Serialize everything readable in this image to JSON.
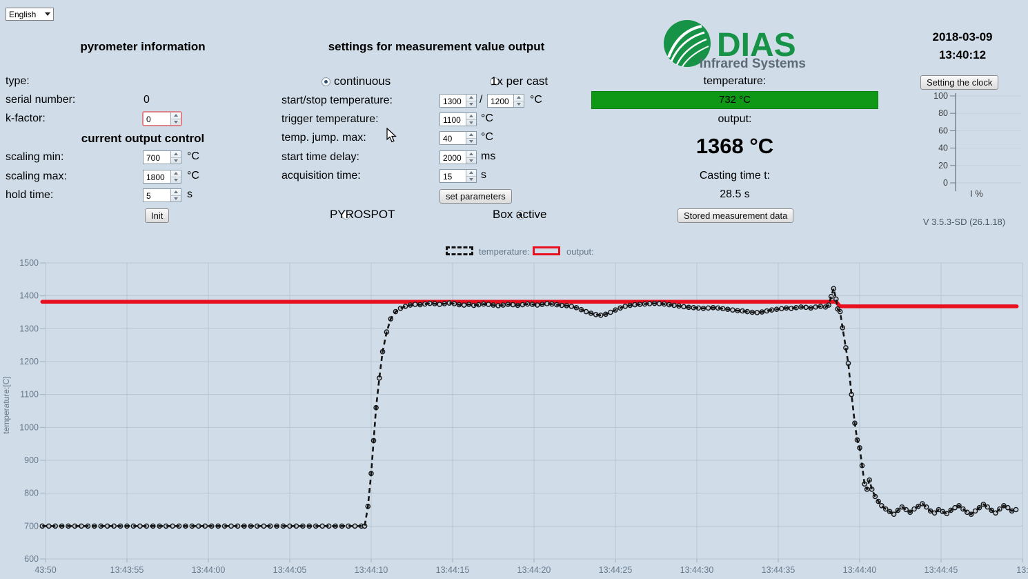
{
  "language_select": {
    "value": "English"
  },
  "left": {
    "title": "pyrometer information",
    "type_label": "type:",
    "serial_label": "serial number:",
    "serial_value": "0",
    "kfactor_label": "k-factor:",
    "kfactor_value": "0",
    "subtitle": "current output control",
    "scaling_min_label": "scaling min:",
    "scaling_min_value": "700",
    "scaling_min_unit": "°C",
    "scaling_max_label": "scaling max:",
    "scaling_max_value": "1800",
    "scaling_max_unit": "°C",
    "hold_time_label": "hold time:",
    "hold_time_value": "5",
    "hold_time_unit": "s",
    "init_button": "Init"
  },
  "settings": {
    "title": "settings for measurement value output",
    "mode_continuous": "continuous",
    "mode_once": "1x per cast",
    "slash": "/",
    "rows": [
      {
        "label": "start/stop temperature:",
        "value": "1300",
        "value2": "1200",
        "unit": "°C"
      },
      {
        "label": "trigger temperature:",
        "value": "1100",
        "unit": "°C"
      },
      {
        "label": "temp. jump. max:",
        "value": "40",
        "unit": "°C"
      },
      {
        "label": "start time delay:",
        "value": "2000",
        "unit": "ms"
      },
      {
        "label": "acquisition time:",
        "value": "15",
        "unit": "s"
      }
    ],
    "set_parameters_button": "set parameters",
    "pyrospot_label": "PYROSPOT",
    "box_active_label": "Box active"
  },
  "status": {
    "brand": "DIAS",
    "brand_sub": "Infrared Systems",
    "temperature_label": "temperature:",
    "temperature_value": "732 °C",
    "output_label": "output:",
    "output_value": "1368 °C",
    "casting_label": "Casting time t:",
    "casting_value": "28.5 s",
    "stored_button": "Stored measurement data"
  },
  "clock": {
    "date": "2018-03-09",
    "time": "13:40:12",
    "button": "Setting the clock",
    "gauge_label": "I %",
    "gauge_ticks": [
      100,
      80,
      60,
      40,
      20,
      0
    ],
    "version": "V 3.5.3-SD (26.1.18)"
  },
  "legend": {
    "temperature": "temperature:",
    "output": "output:"
  },
  "colors": {
    "background": "#d0dde9",
    "grid": "#b9c7d3",
    "output_red": "#e8101e",
    "temperature_black": "#131313",
    "status_green": "#0f9815"
  },
  "chart_data": {
    "type": "line",
    "title": "",
    "xlabel": "",
    "ylabel": "temperature:[C]",
    "ylim": [
      600,
      1500
    ],
    "ytick_step": 100,
    "x_seconds_range": [
      -0.25,
      60.05
    ],
    "x_tick_interval_s": 5,
    "x_tick_labels": [
      "43:50",
      "13:43:55",
      "13:44:00",
      "13:44:05",
      "13:44:10",
      "13:44:15",
      "13:44:20",
      "13:44:25",
      "13:44:30",
      "13:44:35",
      "13:44:40",
      "13:44:45",
      "13:"
    ],
    "grid": true,
    "legend_position": "top-center",
    "series": [
      {
        "name": "temperature",
        "color": "#131313",
        "style": "dashed_with_markers",
        "points": [
          [
            -0.2,
            700
          ],
          [
            0.2,
            700
          ],
          [
            0.6,
            700
          ],
          [
            1,
            700
          ],
          [
            1.4,
            700
          ],
          [
            1.8,
            700
          ],
          [
            2.2,
            700
          ],
          [
            2.6,
            700
          ],
          [
            3,
            700
          ],
          [
            3.4,
            700
          ],
          [
            3.8,
            700
          ],
          [
            4.2,
            700
          ],
          [
            4.6,
            700
          ],
          [
            5,
            700
          ],
          [
            5.4,
            700
          ],
          [
            5.8,
            700
          ],
          [
            6.2,
            700
          ],
          [
            6.6,
            700
          ],
          [
            7,
            700
          ],
          [
            7.4,
            700
          ],
          [
            7.8,
            700
          ],
          [
            8.2,
            700
          ],
          [
            8.6,
            700
          ],
          [
            9,
            700
          ],
          [
            9.4,
            700
          ],
          [
            9.8,
            700
          ],
          [
            10.2,
            700
          ],
          [
            10.6,
            700
          ],
          [
            11,
            700
          ],
          [
            11.4,
            700
          ],
          [
            11.8,
            700
          ],
          [
            12.2,
            700
          ],
          [
            12.6,
            700
          ],
          [
            13,
            700
          ],
          [
            13.4,
            700
          ],
          [
            13.8,
            700
          ],
          [
            14.2,
            700
          ],
          [
            14.6,
            700
          ],
          [
            15,
            700
          ],
          [
            15.4,
            700
          ],
          [
            15.8,
            700
          ],
          [
            16.2,
            700
          ],
          [
            16.6,
            700
          ],
          [
            17,
            700
          ],
          [
            17.4,
            700
          ],
          [
            17.8,
            700
          ],
          [
            18.2,
            700
          ],
          [
            18.6,
            700
          ],
          [
            19,
            700
          ],
          [
            19.4,
            700
          ],
          [
            19.6,
            700
          ],
          [
            19.8,
            760
          ],
          [
            20,
            860
          ],
          [
            20.15,
            960
          ],
          [
            20.3,
            1060
          ],
          [
            20.5,
            1150
          ],
          [
            20.7,
            1230
          ],
          [
            20.95,
            1290
          ],
          [
            21.2,
            1330
          ],
          [
            21.5,
            1352
          ],
          [
            21.8,
            1362
          ],
          [
            22.1,
            1368
          ],
          [
            22.4,
            1372
          ],
          [
            22.7,
            1374
          ],
          [
            23,
            1373
          ],
          [
            23.3,
            1375
          ],
          [
            23.6,
            1377
          ],
          [
            23.9,
            1376
          ],
          [
            24.2,
            1374
          ],
          [
            24.5,
            1376
          ],
          [
            24.8,
            1378
          ],
          [
            25.1,
            1376
          ],
          [
            25.4,
            1373
          ],
          [
            25.7,
            1372
          ],
          [
            26,
            1374
          ],
          [
            26.3,
            1371
          ],
          [
            26.6,
            1373
          ],
          [
            26.9,
            1375
          ],
          [
            27.2,
            1374
          ],
          [
            27.5,
            1372
          ],
          [
            27.8,
            1370
          ],
          [
            28.1,
            1372
          ],
          [
            28.4,
            1374
          ],
          [
            28.7,
            1373
          ],
          [
            29,
            1371
          ],
          [
            29.3,
            1373
          ],
          [
            29.6,
            1375
          ],
          [
            29.9,
            1374
          ],
          [
            30.2,
            1372
          ],
          [
            30.5,
            1374
          ],
          [
            30.8,
            1376
          ],
          [
            31.1,
            1375
          ],
          [
            31.4,
            1373
          ],
          [
            31.7,
            1371
          ],
          [
            32,
            1370
          ],
          [
            32.3,
            1368
          ],
          [
            32.6,
            1364
          ],
          [
            32.9,
            1358
          ],
          [
            33.2,
            1352
          ],
          [
            33.5,
            1347
          ],
          [
            33.8,
            1343
          ],
          [
            34.1,
            1341
          ],
          [
            34.4,
            1344
          ],
          [
            34.7,
            1350
          ],
          [
            35,
            1357
          ],
          [
            35.3,
            1363
          ],
          [
            35.6,
            1368
          ],
          [
            35.9,
            1371
          ],
          [
            36.2,
            1373
          ],
          [
            36.5,
            1374
          ],
          [
            36.8,
            1375
          ],
          [
            37.1,
            1376
          ],
          [
            37.4,
            1377
          ],
          [
            37.7,
            1376
          ],
          [
            38,
            1375
          ],
          [
            38.3,
            1373
          ],
          [
            38.6,
            1371
          ],
          [
            38.9,
            1369
          ],
          [
            39.2,
            1367
          ],
          [
            39.5,
            1365
          ],
          [
            39.8,
            1364
          ],
          [
            40.1,
            1363
          ],
          [
            40.4,
            1362
          ],
          [
            40.7,
            1363
          ],
          [
            41,
            1364
          ],
          [
            41.3,
            1363
          ],
          [
            41.6,
            1361
          ],
          [
            41.9,
            1359
          ],
          [
            42.2,
            1357
          ],
          [
            42.5,
            1355
          ],
          [
            42.8,
            1354
          ],
          [
            43.1,
            1352
          ],
          [
            43.4,
            1350
          ],
          [
            43.7,
            1349
          ],
          [
            44,
            1351
          ],
          [
            44.3,
            1354
          ],
          [
            44.6,
            1357
          ],
          [
            44.9,
            1359
          ],
          [
            45.2,
            1361
          ],
          [
            45.5,
            1363
          ],
          [
            45.8,
            1362
          ],
          [
            46.1,
            1364
          ],
          [
            46.4,
            1366
          ],
          [
            46.7,
            1365
          ],
          [
            47,
            1363
          ],
          [
            47.3,
            1366
          ],
          [
            47.6,
            1368
          ],
          [
            47.9,
            1366
          ],
          [
            48.1,
            1372
          ],
          [
            48.25,
            1398
          ],
          [
            48.4,
            1422
          ],
          [
            48.55,
            1390
          ],
          [
            48.65,
            1360
          ],
          [
            48.8,
            1352
          ],
          [
            48.95,
            1303
          ],
          [
            49.15,
            1242
          ],
          [
            49.3,
            1195
          ],
          [
            49.5,
            1100
          ],
          [
            49.7,
            1013
          ],
          [
            49.85,
            962
          ],
          [
            50,
            938
          ],
          [
            50.15,
            884
          ],
          [
            50.3,
            828
          ],
          [
            50.45,
            812
          ],
          [
            50.6,
            840
          ],
          [
            50.75,
            812
          ],
          [
            50.95,
            790
          ],
          [
            51.15,
            775
          ],
          [
            51.35,
            762
          ],
          [
            51.6,
            752
          ],
          [
            51.85,
            744
          ],
          [
            52.1,
            736
          ],
          [
            52.35,
            748
          ],
          [
            52.6,
            758
          ],
          [
            52.85,
            750
          ],
          [
            53.1,
            742
          ],
          [
            53.35,
            752
          ],
          [
            53.6,
            760
          ],
          [
            53.85,
            768
          ],
          [
            54.1,
            758
          ],
          [
            54.35,
            746
          ],
          [
            54.6,
            740
          ],
          [
            54.85,
            750
          ],
          [
            55.1,
            744
          ],
          [
            55.35,
            738
          ],
          [
            55.6,
            748
          ],
          [
            55.85,
            756
          ],
          [
            56.1,
            762
          ],
          [
            56.35,
            752
          ],
          [
            56.6,
            742
          ],
          [
            56.85,
            736
          ],
          [
            57.1,
            746
          ],
          [
            57.35,
            756
          ],
          [
            57.6,
            766
          ],
          [
            57.85,
            758
          ],
          [
            58.1,
            748
          ],
          [
            58.35,
            740
          ],
          [
            58.6,
            752
          ],
          [
            58.85,
            762
          ],
          [
            59.1,
            756
          ],
          [
            59.35,
            746
          ],
          [
            59.6,
            750
          ]
        ]
      },
      {
        "name": "output",
        "color": "#e8101e",
        "style": "thick_solid",
        "points": [
          [
            -0.2,
            1382
          ],
          [
            48.55,
            1382
          ],
          [
            48.8,
            1368
          ],
          [
            59.65,
            1368
          ]
        ]
      }
    ]
  }
}
